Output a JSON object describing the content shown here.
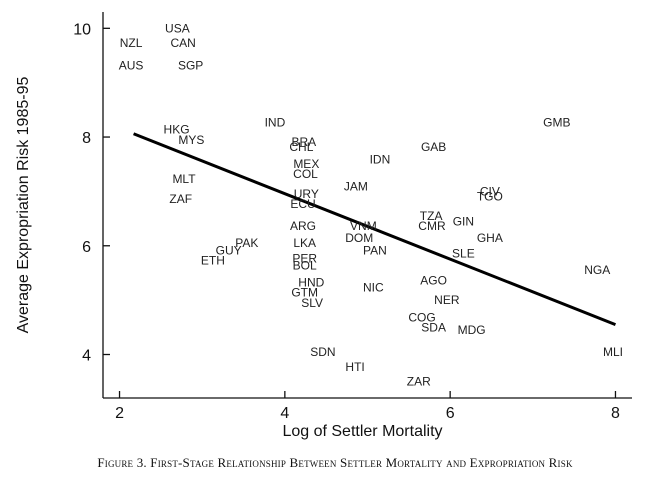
{
  "chart_data": {
    "type": "scatter",
    "title": "",
    "xlabel": "Log of Settler Mortality",
    "ylabel": "Average Expropriation Risk 1985-95",
    "xlim": [
      1.8,
      8.2
    ],
    "ylim": [
      3.2,
      10.3
    ],
    "xticks": [
      2,
      4,
      6,
      8
    ],
    "yticks": [
      4,
      6,
      8,
      10
    ],
    "grid": false,
    "points": [
      {
        "label": "USA",
        "x": 2.7,
        "y": 10.0
      },
      {
        "label": "NZL",
        "x": 2.14,
        "y": 9.73
      },
      {
        "label": "CAN",
        "x": 2.77,
        "y": 9.73
      },
      {
        "label": "AUS",
        "x": 2.14,
        "y": 9.32
      },
      {
        "label": "SGP",
        "x": 2.86,
        "y": 9.32
      },
      {
        "label": "IND",
        "x": 3.88,
        "y": 8.27
      },
      {
        "label": "GMB",
        "x": 7.29,
        "y": 8.27
      },
      {
        "label": "HKG",
        "x": 2.69,
        "y": 8.14
      },
      {
        "label": "MYS",
        "x": 2.87,
        "y": 7.95
      },
      {
        "label": "BRA",
        "x": 4.23,
        "y": 7.91
      },
      {
        "label": "CHL",
        "x": 4.2,
        "y": 7.82
      },
      {
        "label": "GAB",
        "x": 5.8,
        "y": 7.82
      },
      {
        "label": "IDN",
        "x": 5.15,
        "y": 7.59
      },
      {
        "label": "MEX",
        "x": 4.26,
        "y": 7.5
      },
      {
        "label": "COL",
        "x": 4.25,
        "y": 7.32
      },
      {
        "label": "MLT",
        "x": 2.78,
        "y": 7.23
      },
      {
        "label": "JAM",
        "x": 4.86,
        "y": 7.09
      },
      {
        "label": "URY",
        "x": 4.26,
        "y": 6.95
      },
      {
        "label": "CIV",
        "x": 6.48,
        "y": 7.0
      },
      {
        "label": "TGO",
        "x": 6.48,
        "y": 6.91
      },
      {
        "label": "ZAF",
        "x": 2.74,
        "y": 6.86
      },
      {
        "label": "ECU",
        "x": 4.22,
        "y": 6.77
      },
      {
        "label": "TZA",
        "x": 5.77,
        "y": 6.55
      },
      {
        "label": "GIN",
        "x": 6.16,
        "y": 6.45
      },
      {
        "label": "CMR",
        "x": 5.78,
        "y": 6.36
      },
      {
        "label": "VNM",
        "x": 4.95,
        "y": 6.36
      },
      {
        "label": "ARG",
        "x": 4.22,
        "y": 6.36
      },
      {
        "label": "GHA",
        "x": 6.48,
        "y": 6.14
      },
      {
        "label": "DOM",
        "x": 4.9,
        "y": 6.14
      },
      {
        "label": "PAK",
        "x": 3.54,
        "y": 6.05
      },
      {
        "label": "LKA",
        "x": 4.24,
        "y": 6.05
      },
      {
        "label": "GUY",
        "x": 3.32,
        "y": 5.91
      },
      {
        "label": "PAN",
        "x": 5.09,
        "y": 5.91
      },
      {
        "label": "SLE",
        "x": 6.16,
        "y": 5.86
      },
      {
        "label": "ETH",
        "x": 3.13,
        "y": 5.73
      },
      {
        "label": "PER",
        "x": 4.24,
        "y": 5.77
      },
      {
        "label": "BOL",
        "x": 4.24,
        "y": 5.64
      },
      {
        "label": "NGA",
        "x": 7.78,
        "y": 5.55
      },
      {
        "label": "AGO",
        "x": 5.8,
        "y": 5.36
      },
      {
        "label": "HND",
        "x": 4.32,
        "y": 5.32
      },
      {
        "label": "NIC",
        "x": 5.07,
        "y": 5.23
      },
      {
        "label": "GTM",
        "x": 4.24,
        "y": 5.14
      },
      {
        "label": "SLV",
        "x": 4.33,
        "y": 4.95
      },
      {
        "label": "NER",
        "x": 5.96,
        "y": 5.0
      },
      {
        "label": "COG",
        "x": 5.66,
        "y": 4.68
      },
      {
        "label": "SDA",
        "x": 5.8,
        "y": 4.5
      },
      {
        "label": "MDG",
        "x": 6.26,
        "y": 4.45
      },
      {
        "label": "MLI",
        "x": 7.97,
        "y": 4.05
      },
      {
        "label": "SDN",
        "x": 4.46,
        "y": 4.05
      },
      {
        "label": "HTI",
        "x": 4.85,
        "y": 3.77
      },
      {
        "label": "ZAR",
        "x": 5.62,
        "y": 3.5
      }
    ],
    "fit_line": {
      "x": [
        2.17,
        8.0
      ],
      "y": [
        8.06,
        4.55
      ]
    }
  },
  "caption": "Figure 3. First-Stage Relationship Between Settler Mortality and Expropriation Risk"
}
